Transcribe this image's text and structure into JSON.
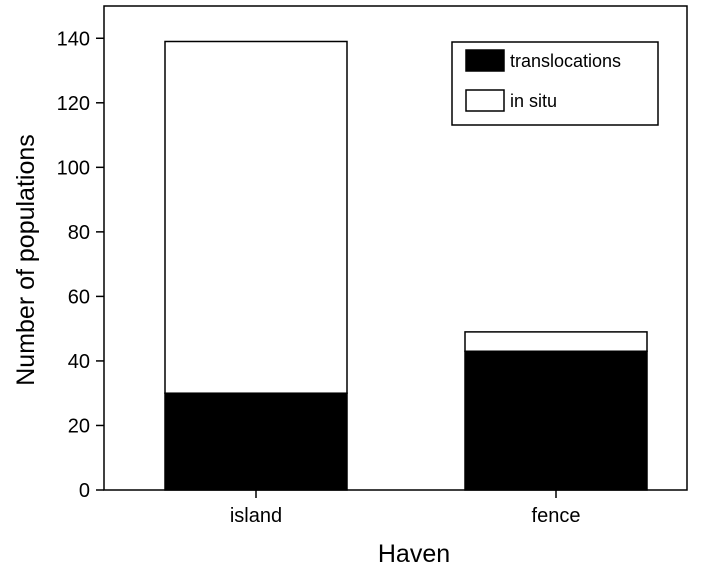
{
  "chart_data": {
    "type": "bar",
    "stacked": true,
    "title": "",
    "xlabel": "Haven",
    "ylabel": "Number of populations",
    "categories": [
      "island",
      "fence"
    ],
    "series": [
      {
        "name": "translocations",
        "values": [
          30,
          43
        ],
        "color": "#000000"
      },
      {
        "name": "in situ",
        "values": [
          109,
          6
        ],
        "color": "#ffffff"
      }
    ],
    "ylim": [
      0,
      150
    ],
    "yticks": [
      0,
      20,
      40,
      60,
      80,
      100,
      120,
      140
    ],
    "grid": false,
    "legend_position": "top-right"
  }
}
